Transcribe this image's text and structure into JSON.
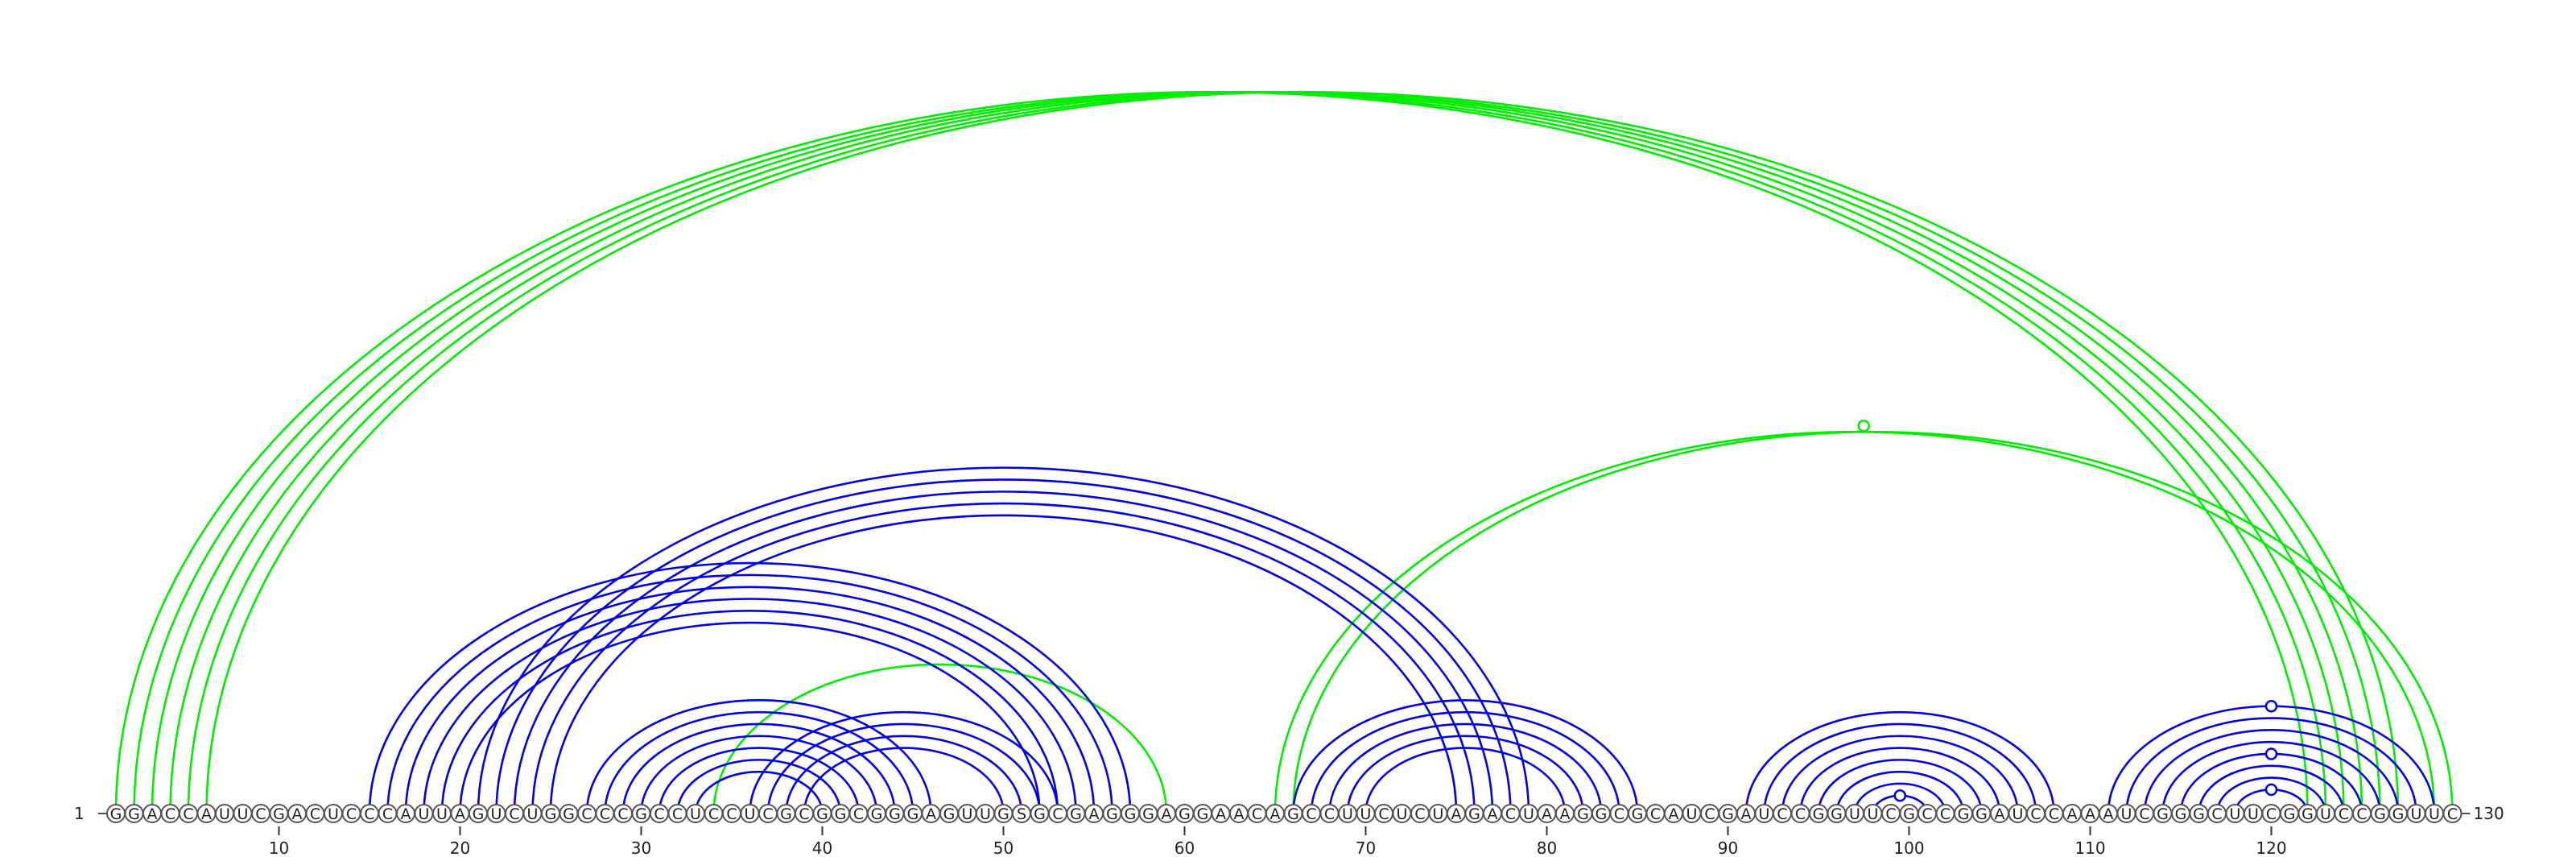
{
  "sequence": "GGACCAUUCGACUCCCAUUAGUCUGGCCCGCCUCCUCGCGGCGGGAGUUGSGCGAGGGAGGAACAGCCUUCUCUAGACUAAGGCGCAUCGAUCCGGUUCGCCGGAUCCAAAUCGGGCUUCGGUCCGGUUC",
  "length": 130,
  "start_label": "1",
  "end_label": "130",
  "axis_ticks": [
    "10",
    "20",
    "30",
    "40",
    "50",
    "60",
    "70",
    "80",
    "90",
    "100",
    "110",
    "120"
  ],
  "colors": {
    "primary_helix": "#0000ee",
    "pseudoknot": "#00ee00",
    "background": "#ffffff"
  },
  "arc_groups": [
    {
      "color": "pseudoknot",
      "pairs": [
        [
          1,
          122
        ],
        [
          2,
          123
        ],
        [
          3,
          124
        ],
        [
          4,
          125
        ],
        [
          5,
          126
        ],
        [
          6,
          127
        ]
      ]
    },
    {
      "color": "pseudoknot",
      "pairs": [
        [
          65,
          129
        ],
        [
          66,
          130
        ]
      ]
    },
    {
      "color": "pseudoknot",
      "pairs": [
        [
          34,
          59
        ]
      ]
    },
    {
      "color": "primary_helix",
      "pairs": [
        [
          15,
          57
        ],
        [
          16,
          56
        ],
        [
          17,
          55
        ],
        [
          18,
          54
        ],
        [
          19,
          53
        ],
        [
          20,
          52
        ]
      ]
    },
    {
      "color": "primary_helix",
      "pairs": [
        [
          21,
          79
        ],
        [
          22,
          78
        ],
        [
          23,
          77
        ],
        [
          24,
          76
        ],
        [
          25,
          75
        ]
      ]
    },
    {
      "color": "primary_helix",
      "pairs": [
        [
          27,
          46
        ],
        [
          28,
          45
        ],
        [
          29,
          44
        ],
        [
          30,
          43
        ],
        [
          31,
          42
        ],
        [
          32,
          41
        ],
        [
          33,
          40
        ]
      ]
    },
    {
      "color": "primary_helix",
      "pairs": [
        [
          36,
          53
        ],
        [
          37,
          52
        ],
        [
          38,
          51
        ],
        [
          39,
          50
        ]
      ]
    },
    {
      "color": "primary_helix",
      "pairs": [
        [
          66,
          85
        ],
        [
          67,
          84
        ],
        [
          68,
          83
        ],
        [
          69,
          82
        ],
        [
          70,
          81
        ]
      ]
    },
    {
      "color": "primary_helix",
      "pairs": [
        [
          91,
          108
        ],
        [
          92,
          107
        ],
        [
          93,
          106
        ],
        [
          94,
          105
        ],
        [
          95,
          104
        ],
        [
          96,
          103
        ],
        [
          97,
          102
        ],
        [
          98,
          101
        ]
      ]
    },
    {
      "color": "primary_helix",
      "pairs": [
        [
          111,
          129
        ],
        [
          112,
          128
        ],
        [
          113,
          127
        ],
        [
          114,
          126
        ],
        [
          115,
          125
        ],
        [
          116,
          124
        ],
        [
          117,
          123
        ],
        [
          118,
          122
        ]
      ]
    }
  ],
  "markers": [
    {
      "between": [
        65,
        130
      ],
      "color": "pseudoknot"
    },
    {
      "between": [
        98,
        101
      ],
      "color": "primary_helix"
    },
    {
      "between": [
        111,
        129
      ],
      "color": "primary_helix"
    },
    {
      "between": [
        115,
        125
      ],
      "color": "primary_helix"
    },
    {
      "between": [
        118,
        122
      ],
      "color": "primary_helix"
    }
  ]
}
